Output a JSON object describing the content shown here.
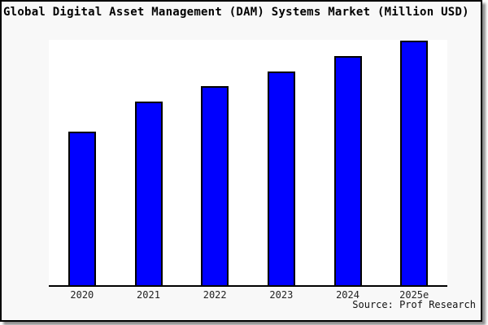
{
  "chart": {
    "title": "Global Digital Asset Management (DAM) Systems Market (Million USD)",
    "source": "Source: Prof Research"
  },
  "chart_data": {
    "type": "bar",
    "title": "Global Digital Asset Management (DAM) Systems Market (Million USD)",
    "categories": [
      "2020",
      "2021",
      "2022",
      "2023",
      "2024",
      "2025e"
    ],
    "values": [
      62.6,
      74.8,
      81.1,
      87.1,
      93.4,
      99.7
    ],
    "value_unit": "% of plot height (no y-axis scale or gridlines shown in chart)",
    "xlabel": "",
    "ylabel": "",
    "grid": false,
    "legend": null,
    "bar_color": "#0000ff",
    "bar_border_color": "#000000",
    "source": "Source: Prof Research"
  },
  "colors": {
    "outer_background": "#f8f8f8",
    "plot_background": "#ffffff",
    "axis": "#000000",
    "frame_border": "#000000",
    "title_text": "#000000",
    "tick_label_text": "#222222"
  }
}
